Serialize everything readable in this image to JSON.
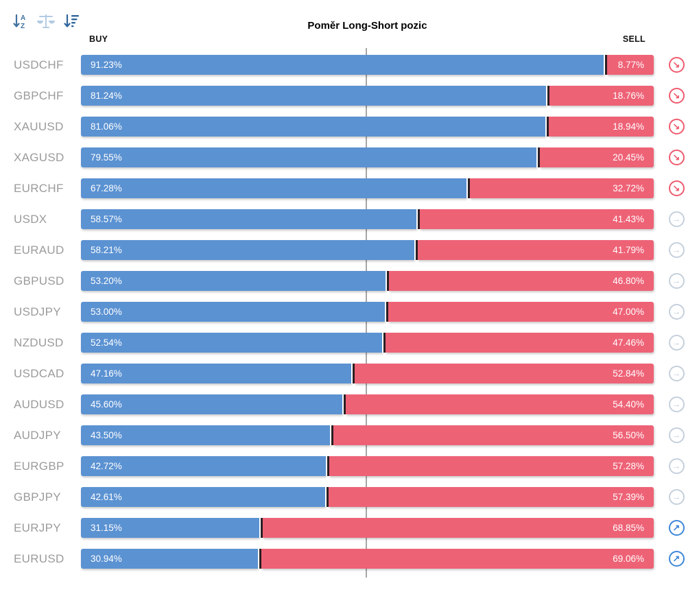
{
  "title": "Poměr Long-Short pozic",
  "columns": {
    "buy": "BUY",
    "sell": "SELL"
  },
  "toolbar": {
    "sort_alpha_icon": "sort-alphabetical",
    "balance_icon": "balance-scale",
    "sort_amount_icon": "sort-by-value"
  },
  "colors": {
    "buy_bar": "#5b92d2",
    "sell_bar": "#ee6276",
    "bar_divider": "#2b2024",
    "center_line": "#a6a6a6",
    "pair_label": "#9b9b9b",
    "signal_sell": "#ee5b6f",
    "signal_neutral": "#c5d0dc",
    "signal_buy": "#3d87d8"
  },
  "signal_glyphs": {
    "sell": "↘",
    "neutral": "→",
    "buy": "↗"
  },
  "chart_data": {
    "type": "bar",
    "orientation": "horizontal-stacked",
    "title": "Poměr Long-Short pozic",
    "series": [
      "BUY",
      "SELL"
    ],
    "xlim": [
      0,
      100
    ],
    "center_reference_pct": 50,
    "rows": [
      {
        "pair": "USDCHF",
        "buy_pct": 91.23,
        "sell_pct": 8.77,
        "buy_label": "91.23%",
        "sell_label": "8.77%",
        "signal": "sell"
      },
      {
        "pair": "GBPCHF",
        "buy_pct": 81.24,
        "sell_pct": 18.76,
        "buy_label": "81.24%",
        "sell_label": "18.76%",
        "signal": "sell"
      },
      {
        "pair": "XAUUSD",
        "buy_pct": 81.06,
        "sell_pct": 18.94,
        "buy_label": "81.06%",
        "sell_label": "18.94%",
        "signal": "sell"
      },
      {
        "pair": "XAGUSD",
        "buy_pct": 79.55,
        "sell_pct": 20.45,
        "buy_label": "79.55%",
        "sell_label": "20.45%",
        "signal": "sell"
      },
      {
        "pair": "EURCHF",
        "buy_pct": 67.28,
        "sell_pct": 32.72,
        "buy_label": "67.28%",
        "sell_label": "32.72%",
        "signal": "sell"
      },
      {
        "pair": "USDX",
        "buy_pct": 58.57,
        "sell_pct": 41.43,
        "buy_label": "58.57%",
        "sell_label": "41.43%",
        "signal": "neutral"
      },
      {
        "pair": "EURAUD",
        "buy_pct": 58.21,
        "sell_pct": 41.79,
        "buy_label": "58.21%",
        "sell_label": "41.79%",
        "signal": "neutral"
      },
      {
        "pair": "GBPUSD",
        "buy_pct": 53.2,
        "sell_pct": 46.8,
        "buy_label": "53.20%",
        "sell_label": "46.80%",
        "signal": "neutral"
      },
      {
        "pair": "USDJPY",
        "buy_pct": 53.0,
        "sell_pct": 47.0,
        "buy_label": "53.00%",
        "sell_label": "47.00%",
        "signal": "neutral"
      },
      {
        "pair": "NZDUSD",
        "buy_pct": 52.54,
        "sell_pct": 47.46,
        "buy_label": "52.54%",
        "sell_label": "47.46%",
        "signal": "neutral"
      },
      {
        "pair": "USDCAD",
        "buy_pct": 47.16,
        "sell_pct": 52.84,
        "buy_label": "47.16%",
        "sell_label": "52.84%",
        "signal": "neutral"
      },
      {
        "pair": "AUDUSD",
        "buy_pct": 45.6,
        "sell_pct": 54.4,
        "buy_label": "45.60%",
        "sell_label": "54.40%",
        "signal": "neutral"
      },
      {
        "pair": "AUDJPY",
        "buy_pct": 43.5,
        "sell_pct": 56.5,
        "buy_label": "43.50%",
        "sell_label": "56.50%",
        "signal": "neutral"
      },
      {
        "pair": "EURGBP",
        "buy_pct": 42.72,
        "sell_pct": 57.28,
        "buy_label": "42.72%",
        "sell_label": "57.28%",
        "signal": "neutral"
      },
      {
        "pair": "GBPJPY",
        "buy_pct": 42.61,
        "sell_pct": 57.39,
        "buy_label": "42.61%",
        "sell_label": "57.39%",
        "signal": "neutral"
      },
      {
        "pair": "EURJPY",
        "buy_pct": 31.15,
        "sell_pct": 68.85,
        "buy_label": "31.15%",
        "sell_label": "68.85%",
        "signal": "buy"
      },
      {
        "pair": "EURUSD",
        "buy_pct": 30.94,
        "sell_pct": 69.06,
        "buy_label": "30.94%",
        "sell_label": "69.06%",
        "signal": "buy"
      }
    ]
  }
}
